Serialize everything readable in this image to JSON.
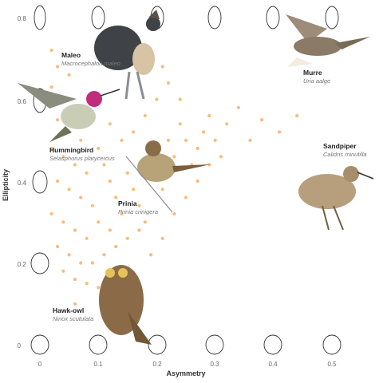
{
  "chart_data": {
    "type": "scatter",
    "title": "",
    "xlabel": "Asymmetry",
    "ylabel": "Ellipticity",
    "xlim": [
      -0.04,
      0.57
    ],
    "ylim": [
      0,
      0.84
    ],
    "x_ticks": [
      "0",
      "0.1",
      "0.2",
      "0.3",
      "0.4",
      "0.5"
    ],
    "y_ticks": [
      "0",
      "0.2",
      "0.4",
      "0.6",
      "0.8"
    ],
    "grid": false,
    "point_color": "#f9b56a",
    "series": [
      {
        "points": [
          [
            0.02,
            0.72
          ],
          [
            0.03,
            0.68
          ],
          [
            0.05,
            0.66
          ],
          [
            0.02,
            0.63
          ],
          [
            0.04,
            0.6
          ],
          [
            0.06,
            0.58
          ],
          [
            0.03,
            0.55
          ],
          [
            0.05,
            0.52
          ],
          [
            0.07,
            0.5
          ],
          [
            0.02,
            0.48
          ],
          [
            0.04,
            0.46
          ],
          [
            0.06,
            0.44
          ],
          [
            0.08,
            0.42
          ],
          [
            0.03,
            0.4
          ],
          [
            0.05,
            0.38
          ],
          [
            0.07,
            0.36
          ],
          [
            0.09,
            0.34
          ],
          [
            0.02,
            0.32
          ],
          [
            0.04,
            0.3
          ],
          [
            0.06,
            0.28
          ],
          [
            0.08,
            0.26
          ],
          [
            0.03,
            0.24
          ],
          [
            0.05,
            0.22
          ],
          [
            0.07,
            0.2
          ],
          [
            0.04,
            0.18
          ],
          [
            0.06,
            0.16
          ],
          [
            0.08,
            0.15
          ],
          [
            0.1,
            0.14
          ],
          [
            0.1,
            0.48
          ],
          [
            0.11,
            0.44
          ],
          [
            0.12,
            0.4
          ],
          [
            0.13,
            0.36
          ],
          [
            0.14,
            0.32
          ],
          [
            0.1,
            0.3
          ],
          [
            0.12,
            0.28
          ],
          [
            0.15,
            0.42
          ],
          [
            0.16,
            0.38
          ],
          [
            0.17,
            0.34
          ],
          [
            0.18,
            0.3
          ],
          [
            0.19,
            0.46
          ],
          [
            0.2,
            0.42
          ],
          [
            0.21,
            0.38
          ],
          [
            0.22,
            0.5
          ],
          [
            0.23,
            0.46
          ],
          [
            0.24,
            0.54
          ],
          [
            0.25,
            0.5
          ],
          [
            0.26,
            0.44
          ],
          [
            0.27,
            0.48
          ],
          [
            0.28,
            0.52
          ],
          [
            0.29,
            0.56
          ],
          [
            0.3,
            0.5
          ],
          [
            0.32,
            0.54
          ],
          [
            0.34,
            0.58
          ],
          [
            0.36,
            0.5
          ],
          [
            0.38,
            0.55
          ],
          [
            0.41,
            0.52
          ],
          [
            0.44,
            0.56
          ],
          [
            0.2,
            0.6
          ],
          [
            0.22,
            0.64
          ],
          [
            0.24,
            0.6
          ],
          [
            0.21,
            0.68
          ],
          [
            0.18,
            0.56
          ],
          [
            0.16,
            0.52
          ],
          [
            0.14,
            0.5
          ],
          [
            0.12,
            0.54
          ],
          [
            0.09,
            0.2
          ],
          [
            0.11,
            0.22
          ],
          [
            0.13,
            0.24
          ],
          [
            0.15,
            0.26
          ],
          [
            0.17,
            0.28
          ],
          [
            0.19,
            0.22
          ],
          [
            0.21,
            0.26
          ],
          [
            0.23,
            0.32
          ],
          [
            0.25,
            0.36
          ],
          [
            0.27,
            0.4
          ],
          [
            0.29,
            0.44
          ],
          [
            0.31,
            0.46
          ],
          [
            0.16,
            0.12
          ],
          [
            0.06,
            0.1
          ],
          [
            0.14,
            0.18
          ]
        ]
      }
    ]
  },
  "birds": [
    {
      "id": "maleo",
      "name": "Maleo",
      "scientific": "Macrocephalon maleo"
    },
    {
      "id": "hummingbird",
      "name": "Hummingbird",
      "scientific": "Selasphorus platycercus"
    },
    {
      "id": "prinia",
      "name": "Prinia",
      "scientific": "Prinia crinigera"
    },
    {
      "id": "hawk-owl",
      "name": "Hawk-owl",
      "scientific": "Ninox scutulata"
    },
    {
      "id": "murre",
      "name": "Murre",
      "scientific": "Uria aalge"
    },
    {
      "id": "sandpiper",
      "name": "Sandpiper",
      "scientific": "Calidris minutilla"
    }
  ]
}
